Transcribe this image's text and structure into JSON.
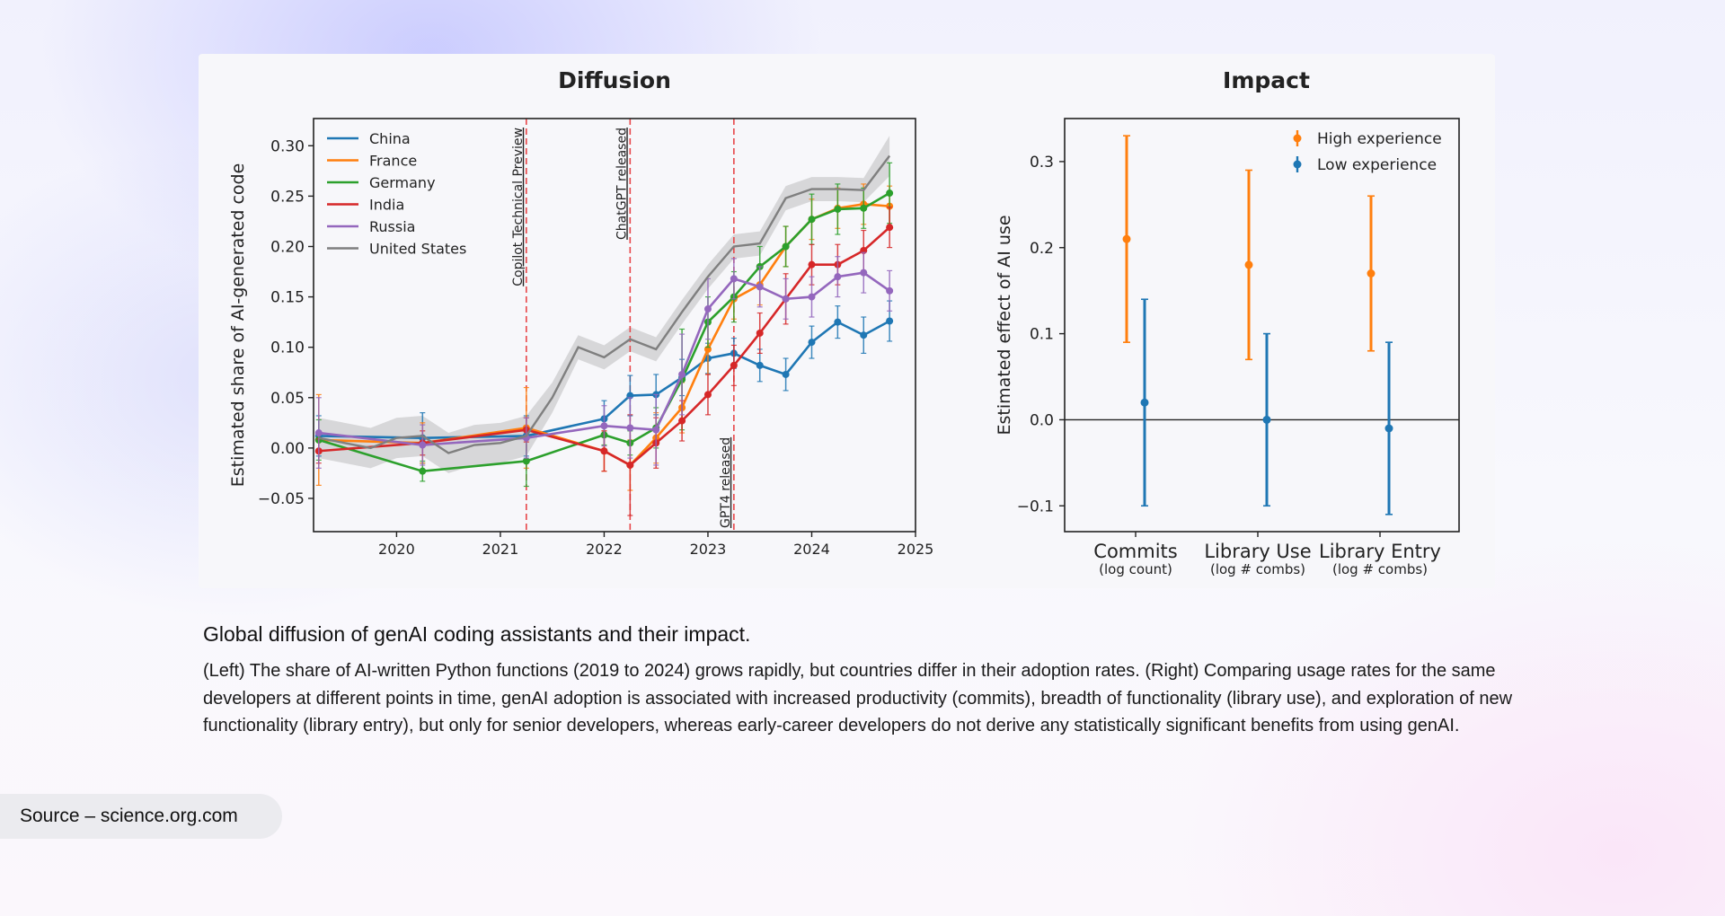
{
  "caption": {
    "title": "Global diffusion of genAI coding assistants and their impact.",
    "body": "(Left) The share of AI-written Python functions (2019 to 2024) grows rapidly, but countries differ in their adoption rates. (Right) Comparing usage rates for the same developers at different points in time, genAI adoption is associated with increased productivity (commits), breadth of functionality (library use), and exploration of new functionality (library entry), but only for senior developers, whereas early-career developers do not derive any statistically significant benefits from using genAI."
  },
  "source": "Source – science.org.com",
  "chart_data": [
    {
      "type": "line",
      "title": "Diffusion",
      "ylabel": "Estimated share of AI-generated code",
      "xlabel": "",
      "xlim": [
        2019.2,
        2025
      ],
      "ylim": [
        -0.083,
        0.327
      ],
      "xticks": [
        2020,
        2021,
        2022,
        2023,
        2024,
        2025
      ],
      "yticks": [
        -0.05,
        0.0,
        0.05,
        0.1,
        0.15,
        0.2,
        0.25,
        0.3
      ],
      "legend": "top-left",
      "grid": false,
      "annotations": [
        {
          "x": 2021.25,
          "label": "Copilot Technical Preview",
          "label_position": "upper"
        },
        {
          "x": 2022.25,
          "label": "ChatGPT released",
          "label_position": "upper"
        },
        {
          "x": 2023.25,
          "label": "GPT4 released",
          "label_position": "lower"
        }
      ],
      "series": [
        {
          "name": "China",
          "color": "#1f77b4",
          "x": [
            2019.25,
            2020.25,
            2021.25,
            2022.0,
            2022.25,
            2022.5,
            2022.75,
            2023.0,
            2023.25,
            2023.5,
            2023.75,
            2024.0,
            2024.25,
            2024.5,
            2024.75
          ],
          "y": [
            0.012,
            0.01,
            0.012,
            0.029,
            0.052,
            0.053,
            0.07,
            0.089,
            0.094,
            0.082,
            0.073,
            0.105,
            0.125,
            0.112,
            0.126
          ],
          "err": [
            0.02,
            0.025,
            0.02,
            0.018,
            0.02,
            0.02,
            0.018,
            0.015,
            0.015,
            0.016,
            0.016,
            0.016,
            0.016,
            0.018,
            0.02
          ]
        },
        {
          "name": "France",
          "color": "#ff7f0e",
          "x": [
            2019.25,
            2020.25,
            2021.25,
            2022.0,
            2022.25,
            2022.5,
            2022.75,
            2023.0,
            2023.25,
            2023.5,
            2023.75,
            2024.0,
            2024.25,
            2024.5,
            2024.75
          ],
          "y": [
            0.008,
            0.005,
            0.02,
            -0.003,
            -0.017,
            0.01,
            0.04,
            0.098,
            0.148,
            0.162,
            0.2,
            0.227,
            0.238,
            0.242,
            0.24
          ],
          "err": [
            0.045,
            0.02,
            0.04,
            0.02,
            0.025,
            0.025,
            0.025,
            0.025,
            0.02,
            0.02,
            0.02,
            0.02,
            0.02,
            0.02,
            0.02
          ]
        },
        {
          "name": "Germany",
          "color": "#2ca02c",
          "x": [
            2019.25,
            2020.25,
            2021.25,
            2022.0,
            2022.25,
            2022.5,
            2022.75,
            2023.0,
            2023.25,
            2023.5,
            2023.75,
            2024.0,
            2024.25,
            2024.5,
            2024.75
          ],
          "y": [
            0.008,
            -0.023,
            -0.013,
            0.013,
            0.005,
            0.02,
            0.068,
            0.125,
            0.15,
            0.18,
            0.2,
            0.227,
            0.237,
            0.238,
            0.253
          ],
          "err": [
            0.02,
            0.01,
            0.025,
            0.01,
            0.012,
            0.02,
            0.05,
            0.025,
            0.025,
            0.02,
            0.02,
            0.025,
            0.025,
            0.02,
            0.03
          ]
        },
        {
          "name": "India",
          "color": "#d62728",
          "x": [
            2019.25,
            2020.25,
            2021.25,
            2022.0,
            2022.25,
            2022.5,
            2022.75,
            2023.0,
            2023.25,
            2023.5,
            2023.75,
            2024.0,
            2024.25,
            2024.5,
            2024.75
          ],
          "y": [
            -0.003,
            0.005,
            0.018,
            -0.003,
            -0.017,
            0.005,
            0.027,
            0.053,
            0.082,
            0.114,
            0.148,
            0.182,
            0.182,
            0.196,
            0.219
          ],
          "err": [
            0.012,
            0.012,
            0.012,
            0.02,
            0.05,
            0.025,
            0.02,
            0.02,
            0.02,
            0.02,
            0.025,
            0.02,
            0.02,
            0.02,
            0.02
          ]
        },
        {
          "name": "Russia",
          "color": "#9467bd",
          "x": [
            2019.25,
            2020.25,
            2021.25,
            2022.0,
            2022.25,
            2022.5,
            2022.75,
            2023.0,
            2023.25,
            2023.5,
            2023.75,
            2024.0,
            2024.25,
            2024.5,
            2024.75
          ],
          "y": [
            0.015,
            0.003,
            0.01,
            0.022,
            0.02,
            0.018,
            0.073,
            0.138,
            0.168,
            0.16,
            0.148,
            0.15,
            0.17,
            0.174,
            0.156
          ],
          "err": [
            0.035,
            0.02,
            0.02,
            0.02,
            0.03,
            0.035,
            0.04,
            0.03,
            0.02,
            0.02,
            0.02,
            0.02,
            0.02,
            0.02,
            0.02
          ]
        },
        {
          "name": "United States",
          "color": "#7f7f7f",
          "x": [
            2019.25,
            2019.5,
            2019.75,
            2020.0,
            2020.25,
            2020.5,
            2020.75,
            2021.0,
            2021.25,
            2021.5,
            2021.75,
            2022.0,
            2022.25,
            2022.5,
            2022.75,
            2023.0,
            2023.25,
            2023.5,
            2023.75,
            2024.0,
            2024.25,
            2024.5,
            2024.75
          ],
          "y": [
            0.01,
            0.005,
            0.0,
            0.01,
            0.012,
            -0.005,
            0.003,
            0.005,
            0.012,
            0.05,
            0.1,
            0.09,
            0.108,
            0.098,
            0.135,
            0.17,
            0.2,
            0.203,
            0.248,
            0.257,
            0.257,
            0.256,
            0.29
          ],
          "err": [
            0.02,
            0.02,
            0.02,
            0.02,
            0.02,
            0.02,
            0.02,
            0.02,
            0.02,
            0.015,
            0.012,
            0.012,
            0.012,
            0.012,
            0.012,
            0.012,
            0.012,
            0.012,
            0.012,
            0.012,
            0.012,
            0.012,
            0.02
          ]
        }
      ]
    },
    {
      "type": "scatter",
      "title": "Impact",
      "ylabel": "Estimated effect of AI use",
      "xlabel": "",
      "ylim": [
        -0.13,
        0.35
      ],
      "yticks": [
        -0.1,
        0.0,
        0.1,
        0.2,
        0.3
      ],
      "reference_line": 0.0,
      "legend": "top-right",
      "grid": false,
      "categories": [
        {
          "label": "Commits",
          "sublabel": "(log count)"
        },
        {
          "label": "Library Use",
          "sublabel": "(log # combs)"
        },
        {
          "label": "Library Entry",
          "sublabel": "(log # combs)"
        }
      ],
      "series": [
        {
          "name": "High experience",
          "color": "#ff7f0e",
          "values": [
            0.21,
            0.18,
            0.17
          ],
          "lower": [
            0.09,
            0.07,
            0.08
          ],
          "upper": [
            0.33,
            0.29,
            0.26
          ]
        },
        {
          "name": "Low experience",
          "color": "#1f77b4",
          "values": [
            0.02,
            0.0,
            -0.01
          ],
          "lower": [
            -0.1,
            -0.1,
            -0.11
          ],
          "upper": [
            0.14,
            0.1,
            0.09
          ]
        }
      ]
    }
  ]
}
